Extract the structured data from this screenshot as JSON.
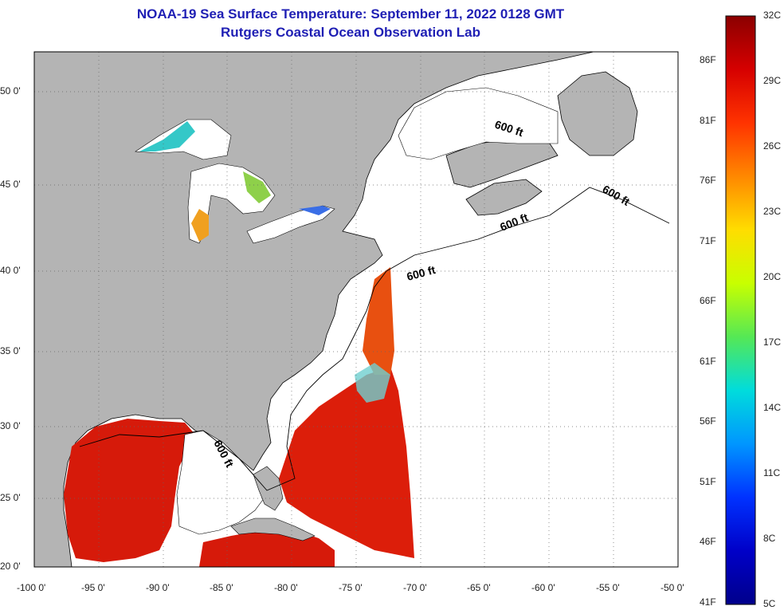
{
  "title": {
    "line1": "NOAA-19 Sea Surface Temperature:  September 11, 2022 0128 GMT",
    "line2": "Rutgers Coastal Ocean Observation Lab"
  },
  "map": {
    "region": "US East Coast, Gulf of Mexico and Great Lakes",
    "lon_labels": [
      "-100 0'",
      "-95 0'",
      "-90 0'",
      "-85 0'",
      "-80 0'",
      "-75 0'",
      "-70 0'",
      "-65 0'",
      "-60 0'",
      "-55 0'",
      "-50 0'"
    ],
    "lat_labels": [
      "20 0'",
      "25 0'",
      "30 0'",
      "35 0'",
      "40 0'",
      "45 0'",
      "50 0'"
    ],
    "isobath_label": "600 ft",
    "colors": {
      "land": "#b4b4b4",
      "no_data": "#ffffff",
      "grid": "#555555"
    }
  },
  "colorbar": {
    "celsius_labels": [
      "32C",
      "29C",
      "26C",
      "23C",
      "20C",
      "17C",
      "14C",
      "11C",
      "8C",
      "5C"
    ],
    "fahrenheit_labels": [
      "86F",
      "81F",
      "76F",
      "71F",
      "66F",
      "61F",
      "56F",
      "51F",
      "46F",
      "41F"
    ],
    "min_c": 5,
    "max_c": 32,
    "gradient_stops": [
      "#8b0000",
      "#d60000",
      "#ff3300",
      "#ff8800",
      "#ffdd00",
      "#c8ff00",
      "#55e855",
      "#00dcdc",
      "#0096ff",
      "#0032ff",
      "#0000c8",
      "#00008b"
    ]
  }
}
